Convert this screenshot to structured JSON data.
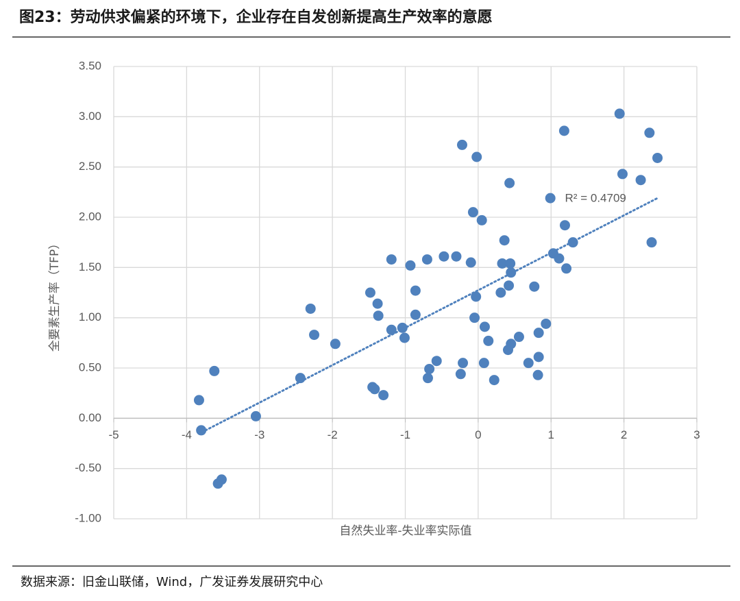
{
  "chart_data": {
    "type": "scatter",
    "title": "图23：劳动供求偏紧的环境下，企业存在自发创新提高生产效率的意愿",
    "source": "数据来源：旧金山联储，Wind，广发证券发展研究中心",
    "xlabel": "自然失业率-失业率实际值",
    "ylabel": "全要素生产率（TFP）",
    "color": "#4f81bd",
    "grid": true,
    "xlim": [
      -5,
      3
    ],
    "xticks": [
      -5,
      -4,
      -3,
      -2,
      -1,
      0,
      1,
      2,
      3
    ],
    "ylim": [
      -1,
      3.5
    ],
    "yticks": [
      {
        "value": -1,
        "label": "-1.00"
      },
      {
        "value": -0.5,
        "label": "-0.50"
      },
      {
        "value": 0,
        "label": "0.00"
      },
      {
        "value": 0.5,
        "label": "0.50"
      },
      {
        "value": 1,
        "label": "1.00"
      },
      {
        "value": 1.5,
        "label": "1.50"
      },
      {
        "value": 2,
        "label": "2.00"
      },
      {
        "value": 2.5,
        "label": "2.50"
      },
      {
        "value": 3,
        "label": "3.00"
      },
      {
        "value": 3.5,
        "label": "3.50"
      }
    ],
    "x": [
      -3.83,
      -3.62,
      -3.8,
      -3.57,
      -3.52,
      -3.05,
      -2.44,
      -2.3,
      -2.25,
      -1.96,
      -1.48,
      -1.38,
      -1.37,
      -1.45,
      -1.42,
      -1.3,
      -1.19,
      -1.19,
      -1.04,
      -1.01,
      -0.93,
      -0.86,
      -0.86,
      -0.69,
      -0.67,
      -0.57,
      -0.7,
      -0.47,
      -0.3,
      -0.22,
      -0.02,
      -0.24,
      -0.21,
      -0.1,
      -0.07,
      0.05,
      -0.03,
      -0.05,
      0.09,
      0.14,
      0.08,
      0.22,
      0.31,
      0.33,
      0.36,
      0.43,
      0.44,
      0.45,
      0.42,
      0.45,
      0.41,
      0.56,
      0.69,
      0.77,
      0.83,
      0.83,
      0.82,
      0.93,
      0.99,
      1.03,
      1.11,
      1.18,
      1.19,
      1.21,
      1.3,
      1.94,
      1.98,
      2.23,
      2.35,
      2.46,
      2.38
    ],
    "values": [
      0.18,
      0.47,
      -0.12,
      -0.65,
      -0.61,
      0.02,
      0.4,
      1.09,
      0.83,
      0.74,
      1.25,
      1.14,
      1.02,
      0.31,
      0.29,
      0.23,
      1.58,
      0.88,
      0.9,
      0.8,
      1.52,
      1.27,
      1.03,
      0.4,
      0.49,
      0.57,
      1.58,
      1.61,
      1.61,
      2.72,
      2.6,
      0.44,
      0.55,
      1.55,
      2.05,
      1.97,
      1.21,
      1.0,
      0.91,
      0.77,
      0.55,
      0.38,
      1.25,
      1.54,
      1.77,
      2.34,
      1.54,
      1.45,
      1.32,
      0.74,
      0.68,
      0.81,
      0.55,
      1.31,
      0.85,
      0.61,
      0.43,
      0.94,
      2.19,
      1.64,
      1.59,
      2.86,
      1.92,
      1.49,
      1.75,
      3.03,
      2.43,
      2.37,
      2.84,
      2.59,
      1.75
    ],
    "trendline": {
      "x": [
        -3.74,
        2.46
      ],
      "y": [
        -0.12,
        2.19
      ],
      "label": "R² = 0.4709"
    }
  }
}
